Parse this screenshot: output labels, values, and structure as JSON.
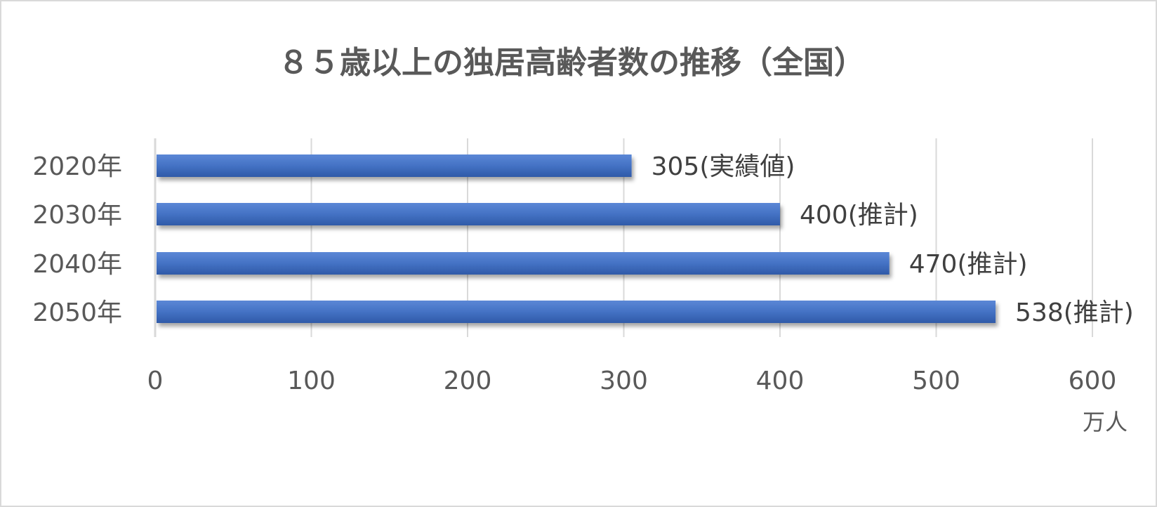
{
  "chart_data": {
    "type": "bar",
    "orientation": "horizontal",
    "title": "８５歳以上の独居高齢者数の推移（全国）",
    "categories": [
      "2020年",
      "2030年",
      "2040年",
      "2050年"
    ],
    "values": [
      305,
      400,
      470,
      538
    ],
    "data_labels": [
      "305(実績値)",
      "400(推計)",
      "470(推計)",
      "538(推計)"
    ],
    "xlim": [
      0,
      600
    ],
    "x_ticks": [
      "0",
      "100",
      "200",
      "300",
      "400",
      "500",
      "600"
    ],
    "x_tick_values": [
      0,
      100,
      200,
      300,
      400,
      500,
      600
    ],
    "xlabel": "万人",
    "grid": true,
    "legend": "none",
    "colors": {
      "bar": "#4472c4",
      "bar_light": "#5b87d6",
      "bar_dark": "#2f5aa8",
      "grid": "#d9d9d9",
      "axis": "#d9d9d9"
    }
  }
}
